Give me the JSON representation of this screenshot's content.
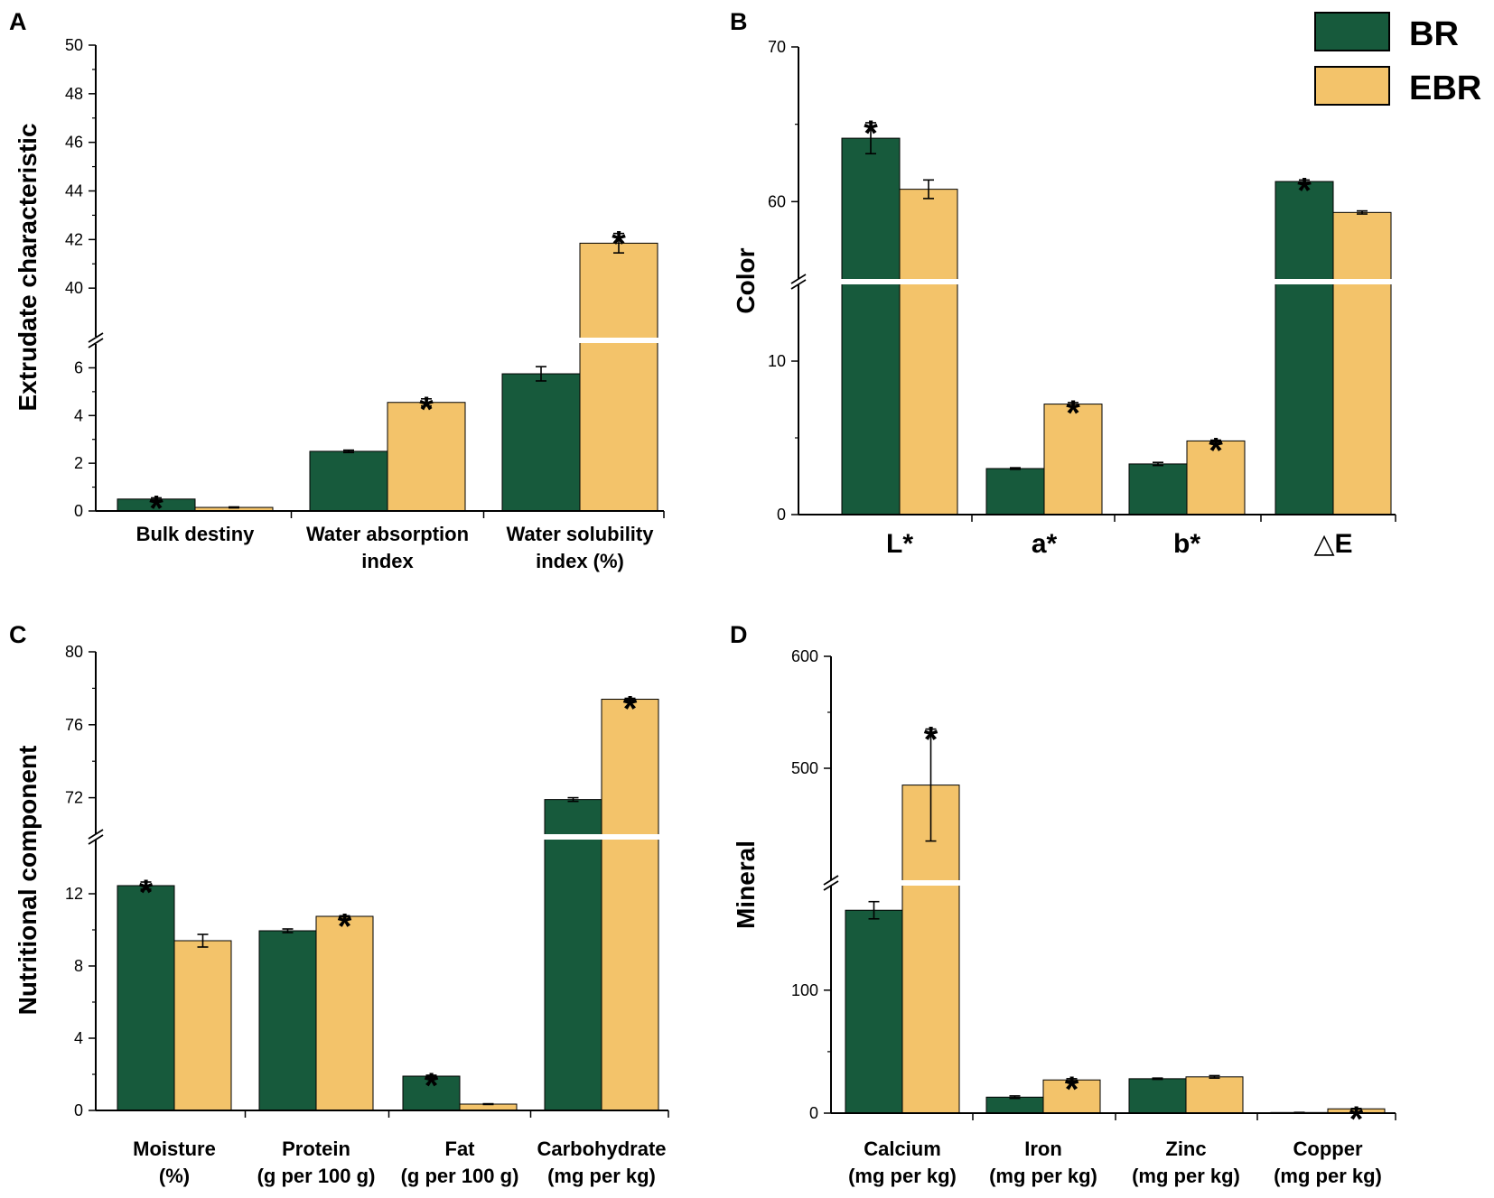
{
  "legend": {
    "items": [
      {
        "name": "BR",
        "color": "#175a3c"
      },
      {
        "name": "EBR",
        "color": "#f3c36a"
      }
    ]
  },
  "chart_data": [
    {
      "panel": "A",
      "type": "bar",
      "ylabel": "Extrudate characteristic",
      "categories": [
        [
          "Bulk destiny"
        ],
        [
          "Water absorption",
          "index"
        ],
        [
          "Water solubility",
          "index (%)"
        ]
      ],
      "series": [
        {
          "name": "BR",
          "values": [
            0.5,
            2.5,
            5.75
          ],
          "errors": [
            0.05,
            0.05,
            0.3
          ]
        },
        {
          "name": "EBR",
          "values": [
            0.15,
            4.55,
            41.85
          ],
          "errors": [
            0.02,
            0.15,
            0.4
          ]
        }
      ],
      "significant": [
        [
          "BR"
        ],
        [
          "EBR"
        ],
        [
          "EBR"
        ]
      ],
      "segments": [
        {
          "range": [
            0,
            7
          ],
          "ticks": [
            0,
            2,
            4,
            6
          ]
        },
        {
          "range": [
            38,
            50
          ],
          "ticks": [
            40,
            42,
            44,
            46,
            48,
            50
          ]
        }
      ]
    },
    {
      "panel": "B",
      "type": "bar",
      "ylabel": "Color",
      "categories": [
        [
          "L*"
        ],
        [
          "a*"
        ],
        [
          "b*"
        ],
        [
          "△E"
        ]
      ],
      "series": [
        {
          "name": "BR",
          "values": [
            64.1,
            3.0,
            3.3,
            61.3
          ],
          "errors": [
            1.0,
            0.05,
            0.1,
            0.1
          ]
        },
        {
          "name": "EBR",
          "values": [
            60.8,
            7.2,
            4.8,
            59.3
          ],
          "errors": [
            0.6,
            0.1,
            0.05,
            0.1
          ]
        }
      ],
      "significant": [
        [
          "BR"
        ],
        [
          "EBR"
        ],
        [
          "EBR"
        ],
        [
          "BR"
        ]
      ],
      "segments": [
        {
          "range": [
            0,
            15
          ],
          "ticks": [
            0,
            10
          ]
        },
        {
          "range": [
            55,
            70
          ],
          "ticks": [
            60,
            70
          ]
        }
      ]
    },
    {
      "panel": "C",
      "type": "bar",
      "ylabel": "Nutritional component",
      "categories": [
        [
          "Moisture",
          "(%)"
        ],
        [
          "Protein",
          "(g per 100 g)"
        ],
        [
          "Fat",
          "(g per 100 g)"
        ],
        [
          "Carbohydrate",
          "(mg per kg)"
        ]
      ],
      "series": [
        {
          "name": "BR",
          "values": [
            12.45,
            9.95,
            1.9,
            71.9
          ],
          "errors": [
            0.2,
            0.1,
            0.05,
            0.1
          ]
        },
        {
          "name": "EBR",
          "values": [
            9.4,
            10.75,
            0.35,
            77.4
          ],
          "errors": [
            0.35,
            0.03,
            0.02,
            0.05
          ]
        }
      ],
      "significant": [
        [
          "BR"
        ],
        [
          "EBR"
        ],
        [
          "BR"
        ],
        [
          "EBR"
        ]
      ],
      "segments": [
        {
          "range": [
            0,
            15
          ],
          "ticks": [
            0,
            4,
            8,
            12
          ]
        },
        {
          "range": [
            70,
            80
          ],
          "ticks": [
            72,
            76,
            80
          ]
        }
      ]
    },
    {
      "panel": "D",
      "type": "bar",
      "ylabel": "Mineral",
      "categories": [
        [
          "Calcium",
          "(mg per kg)"
        ],
        [
          "Iron",
          "(mg per kg)"
        ],
        [
          "Zinc",
          "(mg per kg)"
        ],
        [
          "Copper",
          "(mg per kg)"
        ]
      ],
      "series": [
        {
          "name": "BR",
          "values": [
            165,
            13,
            28,
            0.5
          ],
          "errors": [
            7,
            1,
            0.5,
            0.1
          ]
        },
        {
          "name": "EBR",
          "values": [
            485,
            27,
            29.5,
            3.5
          ],
          "errors": [
            50,
            1,
            1,
            0.3
          ]
        }
      ],
      "significant": [
        [
          "EBR"
        ],
        [
          "EBR"
        ],
        [],
        [
          "EBR"
        ]
      ],
      "segments": [
        {
          "range": [
            0,
            185
          ],
          "ticks": [
            0,
            100
          ]
        },
        {
          "range": [
            400,
            600
          ],
          "ticks": [
            500,
            600
          ]
        }
      ]
    }
  ]
}
